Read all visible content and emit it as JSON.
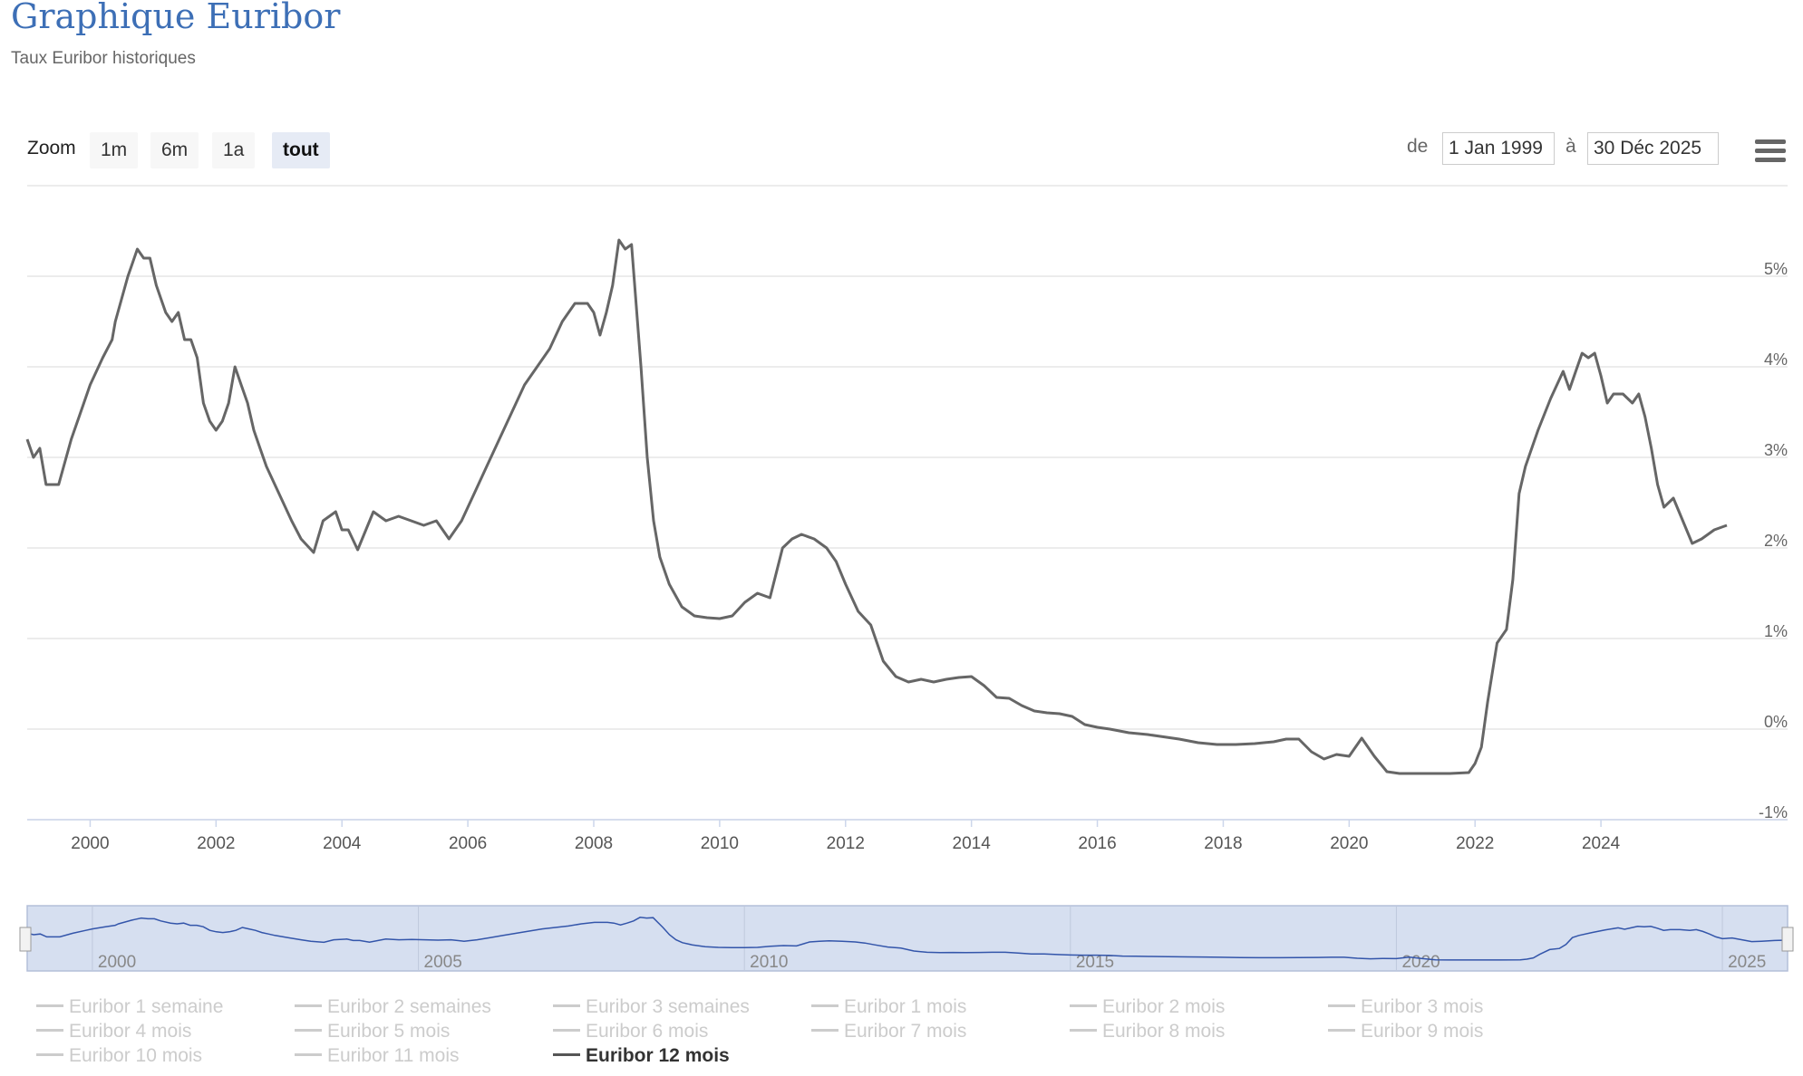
{
  "header": {
    "title": "Graphique Euribor",
    "subtitle": "Taux Euribor historiques"
  },
  "toolbar": {
    "zoom_label": "Zoom",
    "buttons": [
      "1m",
      "6m",
      "1a",
      "tout"
    ],
    "active_button": "tout",
    "from_label": "de",
    "from_value": "1 Jan 1999",
    "to_label": "à",
    "to_value": "30 Déc 2025",
    "menu_icon": "hamburger-menu-icon"
  },
  "colors": {
    "title": "#3d6fb6",
    "series_line": "#666666",
    "navigator_fill": "#d6dff0",
    "navigator_line": "#3355aa",
    "grid": "#e6e6e6",
    "legend_inactive": "#cccccc"
  },
  "chart_data": {
    "type": "line",
    "xlim": [
      1999.0,
      2026.0
    ],
    "ylim": [
      -1,
      6
    ],
    "yticks": [
      -1,
      0,
      1,
      2,
      3,
      4,
      5
    ],
    "ytick_labels": [
      "-1%",
      "0%",
      "1%",
      "2%",
      "3%",
      "4%",
      "5%"
    ],
    "xticks": [
      2000,
      2002,
      2004,
      2006,
      2008,
      2010,
      2012,
      2014,
      2016,
      2018,
      2020,
      2022,
      2024
    ],
    "xtick_labels": [
      "2000",
      "2002",
      "2004",
      "2006",
      "2008",
      "2010",
      "2012",
      "2014",
      "2016",
      "2018",
      "2020",
      "2022",
      "2024"
    ],
    "navigator_ticks": [
      2000,
      2005,
      2010,
      2015,
      2020,
      2025
    ],
    "navigator_tick_labels": [
      "2000",
      "2005",
      "2010",
      "2015",
      "2020",
      "2025"
    ],
    "y_axis_position": "right",
    "grid": true,
    "legend_position": "bottom",
    "series": [
      {
        "name": "Euribor 12 mois",
        "visible": true,
        "x": [
          1999.0,
          1999.1,
          1999.2,
          1999.3,
          1999.5,
          1999.7,
          1999.9,
          2000.0,
          2000.2,
          2000.35,
          2000.4,
          2000.6,
          2000.65,
          2000.75,
          2000.85,
          2000.95,
          2001.05,
          2001.2,
          2001.3,
          2001.4,
          2001.5,
          2001.6,
          2001.7,
          2001.8,
          2001.9,
          2002.0,
          2002.1,
          2002.2,
          2002.3,
          2002.4,
          2002.5,
          2002.6,
          2002.7,
          2002.8,
          2003.0,
          2003.2,
          2003.35,
          2003.55,
          2003.7,
          2003.9,
          2004.0,
          2004.1,
          2004.25,
          2004.5,
          2004.7,
          2004.9,
          2005.1,
          2005.3,
          2005.5,
          2005.7,
          2005.9,
          2006.1,
          2006.3,
          2006.5,
          2006.7,
          2006.9,
          2007.1,
          2007.3,
          2007.5,
          2007.7,
          2007.9,
          2008.0,
          2008.1,
          2008.2,
          2008.3,
          2008.4,
          2008.5,
          2008.6,
          2008.75,
          2008.85,
          2008.95,
          2009.05,
          2009.2,
          2009.4,
          2009.6,
          2009.8,
          2010.0,
          2010.2,
          2010.4,
          2010.6,
          2010.8,
          2011.0,
          2011.15,
          2011.3,
          2011.5,
          2011.7,
          2011.85,
          2012.0,
          2012.2,
          2012.4,
          2012.6,
          2012.8,
          2013.0,
          2013.2,
          2013.4,
          2013.6,
          2013.8,
          2014.0,
          2014.2,
          2014.4,
          2014.6,
          2014.8,
          2015.0,
          2015.2,
          2015.4,
          2015.6,
          2015.8,
          2016.0,
          2016.2,
          2016.5,
          2016.8,
          2017.0,
          2017.3,
          2017.6,
          2017.9,
          2018.2,
          2018.5,
          2018.8,
          2019.0,
          2019.2,
          2019.4,
          2019.6,
          2019.8,
          2020.0,
          2020.2,
          2020.4,
          2020.6,
          2020.8,
          2021.0,
          2021.3,
          2021.6,
          2021.9,
          2022.0,
          2022.1,
          2022.2,
          2022.35,
          2022.5,
          2022.6,
          2022.7,
          2022.8,
          2023.0,
          2023.2,
          2023.4,
          2023.5,
          2023.6,
          2023.7,
          2023.8,
          2023.9,
          2024.0,
          2024.1,
          2024.2,
          2024.35,
          2024.5,
          2024.6,
          2024.7,
          2024.8,
          2024.9,
          2025.0,
          2025.15,
          2025.3,
          2025.45,
          2025.6,
          2025.8,
          2026.0
        ],
        "values": [
          3.2,
          3.0,
          3.1,
          2.7,
          2.7,
          3.2,
          3.6,
          3.8,
          4.1,
          4.3,
          4.5,
          5.0,
          5.1,
          5.3,
          5.2,
          5.2,
          4.9,
          4.6,
          4.5,
          4.6,
          4.3,
          4.3,
          4.1,
          3.6,
          3.4,
          3.3,
          3.4,
          3.6,
          4.0,
          3.8,
          3.6,
          3.3,
          3.1,
          2.9,
          2.6,
          2.3,
          2.1,
          1.95,
          2.3,
          2.4,
          2.2,
          2.2,
          1.98,
          2.4,
          2.3,
          2.35,
          2.3,
          2.25,
          2.3,
          2.1,
          2.3,
          2.6,
          2.9,
          3.2,
          3.5,
          3.8,
          4.0,
          4.2,
          4.5,
          4.7,
          4.7,
          4.6,
          4.35,
          4.6,
          4.9,
          5.4,
          5.3,
          5.35,
          4.0,
          3.0,
          2.3,
          1.9,
          1.6,
          1.35,
          1.25,
          1.23,
          1.22,
          1.25,
          1.4,
          1.5,
          1.45,
          2.0,
          2.1,
          2.15,
          2.1,
          2.0,
          1.85,
          1.6,
          1.3,
          1.15,
          0.75,
          0.58,
          0.52,
          0.55,
          0.52,
          0.55,
          0.57,
          0.58,
          0.48,
          0.35,
          0.34,
          0.26,
          0.2,
          0.18,
          0.17,
          0.14,
          0.05,
          0.02,
          0.0,
          -0.04,
          -0.06,
          -0.08,
          -0.11,
          -0.15,
          -0.17,
          -0.17,
          -0.16,
          -0.14,
          -0.11,
          -0.11,
          -0.25,
          -0.33,
          -0.28,
          -0.3,
          -0.1,
          -0.3,
          -0.47,
          -0.49,
          -0.49,
          -0.49,
          -0.49,
          -0.48,
          -0.38,
          -0.2,
          0.3,
          0.95,
          1.1,
          1.65,
          2.6,
          2.9,
          3.3,
          3.65,
          3.95,
          3.75,
          3.95,
          4.15,
          4.1,
          4.15,
          3.9,
          3.6,
          3.7,
          3.7,
          3.6,
          3.7,
          3.45,
          3.1,
          2.7,
          2.45,
          2.55,
          2.3,
          2.05,
          2.1,
          2.2,
          2.25
        ]
      }
    ]
  },
  "legend": {
    "items": [
      "Euribor 1 semaine",
      "Euribor 2 semaines",
      "Euribor 3 semaines",
      "Euribor 1 mois",
      "Euribor 2 mois",
      "Euribor 3 mois",
      "Euribor 4 mois",
      "Euribor 5 mois",
      "Euribor 6 mois",
      "Euribor 7 mois",
      "Euribor 8 mois",
      "Euribor 9 mois",
      "Euribor 10 mois",
      "Euribor 11 mois",
      "Euribor 12 mois"
    ],
    "active_index": 14
  }
}
